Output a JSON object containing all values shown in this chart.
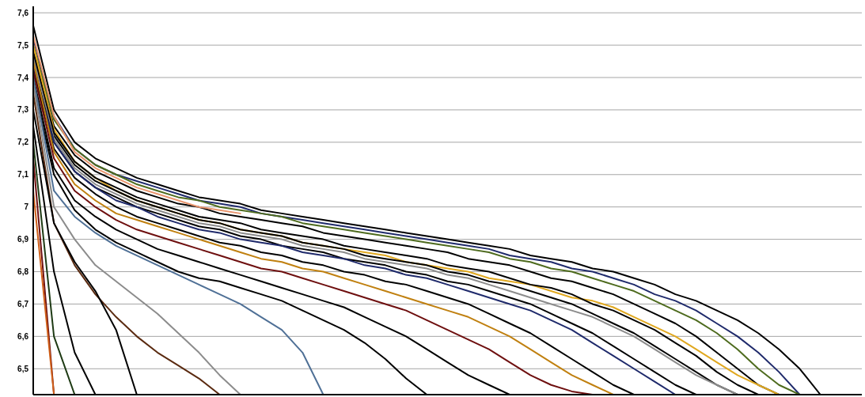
{
  "chart_data": {
    "type": "line",
    "categories": [
      null,
      null,
      null,
      null,
      null,
      null,
      null,
      null,
      null,
      null,
      null,
      null,
      null,
      null,
      null,
      null,
      null,
      null,
      null,
      null,
      null,
      null,
      null,
      null,
      null,
      null,
      null,
      null,
      null,
      null,
      null,
      null,
      null,
      null,
      null,
      null,
      null,
      null,
      null,
      null,
      null
    ],
    "ylim": [
      6.42,
      7.62
    ],
    "yticks": [
      {
        "value": 6.5,
        "label": "6,5"
      },
      {
        "value": 6.6,
        "label": "6,6"
      },
      {
        "value": 6.7,
        "label": "6,7"
      },
      {
        "value": 6.8,
        "label": "6,8"
      },
      {
        "value": 6.9,
        "label": "6,9"
      },
      {
        "value": 7,
        "label": "7"
      },
      {
        "value": 7.1,
        "label": "7,1"
      },
      {
        "value": 7.2,
        "label": "7,2"
      },
      {
        "value": 7.3,
        "label": "7,3"
      },
      {
        "value": 7.4,
        "label": "7,4"
      },
      {
        "value": 7.5,
        "label": "7,5"
      },
      {
        "value": 7.6,
        "label": "7,6"
      }
    ],
    "grid": "y",
    "tick_labels": "y",
    "series": [
      {
        "color": "#000000",
        "values": [
          7.56,
          7.3,
          7.2,
          7.15,
          7.12,
          7.09,
          7.07,
          7.05,
          7.03,
          7.02,
          7.01,
          6.99,
          6.98,
          6.97,
          6.96,
          6.95,
          6.94,
          6.93,
          6.92,
          6.91,
          6.9,
          6.89,
          6.88,
          6.87,
          6.85,
          6.84,
          6.83,
          6.81,
          6.8,
          6.78,
          6.76,
          6.73,
          6.71,
          6.68,
          6.65,
          6.61,
          6.56,
          6.5,
          6.42,
          null,
          null
        ]
      },
      {
        "color": "#1f2a6b",
        "values": [
          7.52,
          7.28,
          7.18,
          7.13,
          7.1,
          7.08,
          7.06,
          7.04,
          7.02,
          7.01,
          7.0,
          6.98,
          6.97,
          6.96,
          6.95,
          6.94,
          6.93,
          6.92,
          6.91,
          6.9,
          6.89,
          6.88,
          6.87,
          6.85,
          6.84,
          6.83,
          6.81,
          6.8,
          6.78,
          6.76,
          6.73,
          6.71,
          6.68,
          6.64,
          6.6,
          6.55,
          6.49,
          6.42,
          null,
          null,
          null
        ]
      },
      {
        "color": "#4e6b1e",
        "values": [
          7.5,
          7.27,
          7.18,
          7.13,
          7.1,
          7.07,
          7.05,
          7.03,
          7.02,
          7.0,
          6.99,
          6.98,
          6.97,
          6.95,
          6.94,
          6.93,
          6.92,
          6.91,
          6.9,
          6.89,
          6.88,
          6.87,
          6.86,
          6.84,
          6.83,
          6.81,
          6.8,
          6.78,
          6.76,
          6.74,
          6.71,
          6.68,
          6.65,
          6.61,
          6.56,
          6.5,
          6.45,
          6.42,
          null,
          null,
          null
        ]
      },
      {
        "color": "#000000",
        "values": [
          7.48,
          7.25,
          7.16,
          7.11,
          7.08,
          7.05,
          7.03,
          7.01,
          7.0,
          6.98,
          6.97,
          6.96,
          6.95,
          6.94,
          6.92,
          6.91,
          6.9,
          6.89,
          6.88,
          6.87,
          6.86,
          6.84,
          6.83,
          6.82,
          6.8,
          6.78,
          6.77,
          6.75,
          6.73,
          6.7,
          6.67,
          6.64,
          6.6,
          6.55,
          6.5,
          6.45,
          6.42,
          null,
          null,
          null,
          null
        ]
      },
      {
        "color": "#e0a820",
        "values": [
          7.5,
          7.24,
          7.14,
          7.09,
          7.05,
          7.02,
          7.0,
          6.98,
          6.96,
          6.95,
          6.93,
          6.92,
          6.91,
          6.89,
          6.88,
          6.87,
          6.86,
          6.85,
          6.83,
          6.82,
          6.81,
          6.8,
          6.78,
          6.77,
          6.76,
          6.74,
          6.72,
          6.71,
          6.69,
          6.66,
          6.63,
          6.6,
          6.56,
          6.52,
          6.48,
          6.45,
          6.42,
          null,
          null,
          null,
          null
        ]
      },
      {
        "color": "#000000",
        "values": [
          7.47,
          7.23,
          7.14,
          7.09,
          7.06,
          7.03,
          7.01,
          6.99,
          6.97,
          6.96,
          6.95,
          6.93,
          6.92,
          6.91,
          6.9,
          6.88,
          6.87,
          6.86,
          6.85,
          6.84,
          6.82,
          6.81,
          6.8,
          6.78,
          6.76,
          6.75,
          6.73,
          6.7,
          6.68,
          6.65,
          6.62,
          6.58,
          6.54,
          6.49,
          6.45,
          6.42,
          null,
          null,
          null,
          null,
          null
        ]
      },
      {
        "color": "#000000",
        "values": [
          7.45,
          7.22,
          7.13,
          7.08,
          7.05,
          7.02,
          7.0,
          6.98,
          6.96,
          6.95,
          6.93,
          6.92,
          6.91,
          6.89,
          6.88,
          6.87,
          6.85,
          6.84,
          6.83,
          6.82,
          6.8,
          6.79,
          6.77,
          6.76,
          6.74,
          6.72,
          6.7,
          6.67,
          6.64,
          6.61,
          6.57,
          6.53,
          6.49,
          6.45,
          6.42,
          null,
          null,
          null,
          null,
          null,
          null
        ]
      },
      {
        "color": "#8c8c8c",
        "values": [
          7.46,
          7.21,
          7.12,
          7.07,
          7.04,
          7.01,
          6.99,
          6.97,
          6.95,
          6.94,
          6.92,
          6.91,
          6.9,
          6.88,
          6.87,
          6.86,
          6.84,
          6.83,
          6.82,
          6.81,
          6.79,
          6.78,
          6.76,
          6.74,
          6.72,
          6.7,
          6.68,
          6.66,
          6.63,
          6.6,
          6.56,
          6.52,
          6.48,
          6.45,
          6.42,
          null,
          null,
          null,
          null,
          null,
          null
        ]
      },
      {
        "color": "#000000",
        "values": [
          7.44,
          7.2,
          7.11,
          7.06,
          7.03,
          7.0,
          6.98,
          6.96,
          6.94,
          6.93,
          6.91,
          6.9,
          6.88,
          6.87,
          6.86,
          6.84,
          6.83,
          6.82,
          6.8,
          6.79,
          6.77,
          6.76,
          6.74,
          6.72,
          6.7,
          6.67,
          6.64,
          6.61,
          6.57,
          6.53,
          6.49,
          6.45,
          6.42,
          null,
          null,
          null,
          null,
          null,
          null,
          null,
          null
        ]
      },
      {
        "color": "#1f2a6b",
        "values": [
          7.43,
          7.2,
          7.11,
          7.06,
          7.02,
          7.0,
          6.97,
          6.95,
          6.93,
          6.92,
          6.9,
          6.89,
          6.88,
          6.86,
          6.85,
          6.84,
          6.82,
          6.81,
          6.79,
          6.78,
          6.76,
          6.74,
          6.72,
          6.7,
          6.68,
          6.65,
          6.62,
          6.58,
          6.54,
          6.5,
          6.46,
          6.42,
          null,
          null,
          null,
          null,
          null,
          null,
          null,
          null,
          null
        ]
      },
      {
        "color": "#000000",
        "values": [
          7.42,
          7.18,
          7.09,
          7.04,
          7.0,
          6.97,
          6.95,
          6.93,
          6.91,
          6.89,
          6.88,
          6.86,
          6.85,
          6.83,
          6.82,
          6.8,
          6.79,
          6.77,
          6.76,
          6.74,
          6.72,
          6.7,
          6.67,
          6.64,
          6.61,
          6.57,
          6.53,
          6.49,
          6.45,
          6.42,
          null,
          null,
          null,
          null,
          null,
          null,
          null,
          null,
          null,
          null,
          null
        ]
      },
      {
        "color": "#c08010",
        "values": [
          7.45,
          7.17,
          7.07,
          7.02,
          6.98,
          6.96,
          6.94,
          6.92,
          6.9,
          6.88,
          6.86,
          6.84,
          6.83,
          6.81,
          6.8,
          6.78,
          6.76,
          6.74,
          6.72,
          6.7,
          6.68,
          6.66,
          6.63,
          6.6,
          6.56,
          6.52,
          6.48,
          6.45,
          6.42,
          null,
          null,
          null,
          null,
          null,
          null,
          null,
          null,
          null,
          null,
          null,
          null
        ]
      },
      {
        "color": "#6e0f0f",
        "values": [
          7.42,
          7.15,
          7.05,
          7.0,
          6.96,
          6.93,
          6.91,
          6.89,
          6.87,
          6.85,
          6.83,
          6.81,
          6.8,
          6.78,
          6.76,
          6.74,
          6.72,
          6.7,
          6.68,
          6.65,
          6.62,
          6.59,
          6.56,
          6.52,
          6.48,
          6.45,
          6.43,
          6.42,
          null,
          null,
          null,
          null,
          null,
          null,
          null,
          null,
          null,
          null,
          null,
          null,
          null
        ]
      },
      {
        "color": "#000000",
        "values": [
          7.4,
          7.12,
          7.02,
          6.97,
          6.93,
          6.9,
          6.87,
          6.85,
          6.83,
          6.81,
          6.79,
          6.77,
          6.75,
          6.73,
          6.71,
          6.69,
          6.66,
          6.63,
          6.6,
          6.56,
          6.52,
          6.48,
          6.45,
          6.42,
          null,
          null,
          null,
          null,
          null,
          null,
          null,
          null,
          null,
          null,
          null,
          null,
          null,
          null,
          null,
          null,
          null
        ]
      },
      {
        "color": "#000000",
        "values": [
          7.38,
          7.1,
          6.99,
          6.93,
          6.89,
          6.86,
          6.83,
          6.8,
          6.78,
          6.77,
          6.75,
          6.73,
          6.71,
          6.68,
          6.65,
          6.62,
          6.58,
          6.53,
          6.47,
          6.42,
          null,
          null,
          null,
          null,
          null,
          null,
          null,
          null,
          null,
          null,
          null,
          null,
          null,
          null,
          null,
          null,
          null,
          null,
          null,
          null,
          null
        ]
      },
      {
        "color": "#4f7096",
        "values": [
          7.4,
          7.05,
          6.97,
          6.92,
          6.88,
          6.85,
          6.82,
          6.79,
          6.76,
          6.73,
          6.7,
          6.66,
          6.62,
          6.55,
          6.42,
          null,
          null,
          null,
          null,
          null,
          null,
          null,
          null,
          null,
          null,
          null,
          null,
          null,
          null,
          null,
          null,
          null,
          null,
          null,
          null,
          null,
          null,
          null,
          null,
          null,
          null
        ]
      },
      {
        "color": "#8c8c8c",
        "values": [
          7.38,
          7.0,
          6.9,
          6.82,
          6.77,
          6.72,
          6.67,
          6.61,
          6.55,
          6.48,
          6.42,
          null,
          null,
          null,
          null,
          null,
          null,
          null,
          null,
          null,
          null,
          null,
          null,
          null,
          null,
          null,
          null,
          null,
          null,
          null,
          null,
          null,
          null,
          null,
          null,
          null,
          null,
          null,
          null,
          null,
          null
        ]
      },
      {
        "color": "#5a2a10",
        "values": [
          7.35,
          6.95,
          6.82,
          6.73,
          6.66,
          6.6,
          6.55,
          6.51,
          6.47,
          6.42,
          null,
          null,
          null,
          null,
          null,
          null,
          null,
          null,
          null,
          null,
          null,
          null,
          null,
          null,
          null,
          null,
          null,
          null,
          null,
          null,
          null,
          null,
          null,
          null,
          null,
          null,
          null,
          null,
          null,
          null,
          null
        ]
      },
      {
        "color": "#000000",
        "values": [
          7.3,
          6.95,
          6.83,
          6.74,
          6.62,
          6.42,
          null,
          null,
          null,
          null,
          null,
          null,
          null,
          null,
          null,
          null,
          null,
          null,
          null,
          null,
          null,
          null,
          null,
          null,
          null,
          null,
          null,
          null,
          null,
          null,
          null,
          null,
          null,
          null,
          null,
          null,
          null,
          null,
          null,
          null,
          null
        ]
      },
      {
        "color": "#000000",
        "values": [
          7.25,
          6.8,
          6.55,
          6.42,
          null,
          null,
          null,
          null,
          null,
          null,
          null,
          null,
          null,
          null,
          null,
          null,
          null,
          null,
          null,
          null,
          null,
          null,
          null,
          null,
          null,
          null,
          null,
          null,
          null,
          null,
          null,
          null,
          null,
          null,
          null,
          null,
          null,
          null,
          null,
          null,
          null
        ]
      },
      {
        "color": "#1e3a14",
        "values": [
          7.2,
          6.6,
          6.42,
          null,
          null,
          null,
          null,
          null,
          null,
          null,
          null,
          null,
          null,
          null,
          null,
          null,
          null,
          null,
          null,
          null,
          null,
          null,
          null,
          null,
          null,
          null,
          null,
          null,
          null,
          null,
          null,
          null,
          null,
          null,
          null,
          null,
          null,
          null,
          null,
          null,
          null
        ]
      },
      {
        "color": "#6e0f0f",
        "values": [
          7.15,
          6.42,
          null,
          null,
          null,
          null,
          null,
          null,
          null,
          null,
          null,
          null,
          null,
          null,
          null,
          null,
          null,
          null,
          null,
          null,
          null,
          null,
          null,
          null,
          null,
          null,
          null,
          null,
          null,
          null,
          null,
          null,
          null,
          null,
          null,
          null,
          null,
          null,
          null,
          null,
          null
        ]
      },
      {
        "color": "#d0601a",
        "values": [
          7.05,
          6.42,
          null,
          null,
          null,
          null,
          null,
          null,
          null,
          null,
          null,
          null,
          null,
          null,
          null,
          null,
          null,
          null,
          null,
          null,
          null,
          null,
          null,
          null,
          null,
          null,
          null,
          null,
          null,
          null,
          null,
          null,
          null,
          null,
          null,
          null,
          null,
          null,
          null,
          null,
          null
        ]
      },
      {
        "color": "#e8956e",
        "values": [
          7.53,
          7.28,
          7.17,
          7.12,
          7.09,
          7.06,
          7.04,
          7.02,
          7.0,
          6.99,
          6.98,
          null,
          null,
          null,
          null,
          null,
          null,
          null,
          null,
          null,
          null,
          null,
          null,
          null,
          null,
          null,
          null,
          null,
          null,
          null,
          null,
          null,
          null,
          null,
          null,
          null,
          null,
          null,
          null,
          null,
          null
        ]
      }
    ]
  }
}
